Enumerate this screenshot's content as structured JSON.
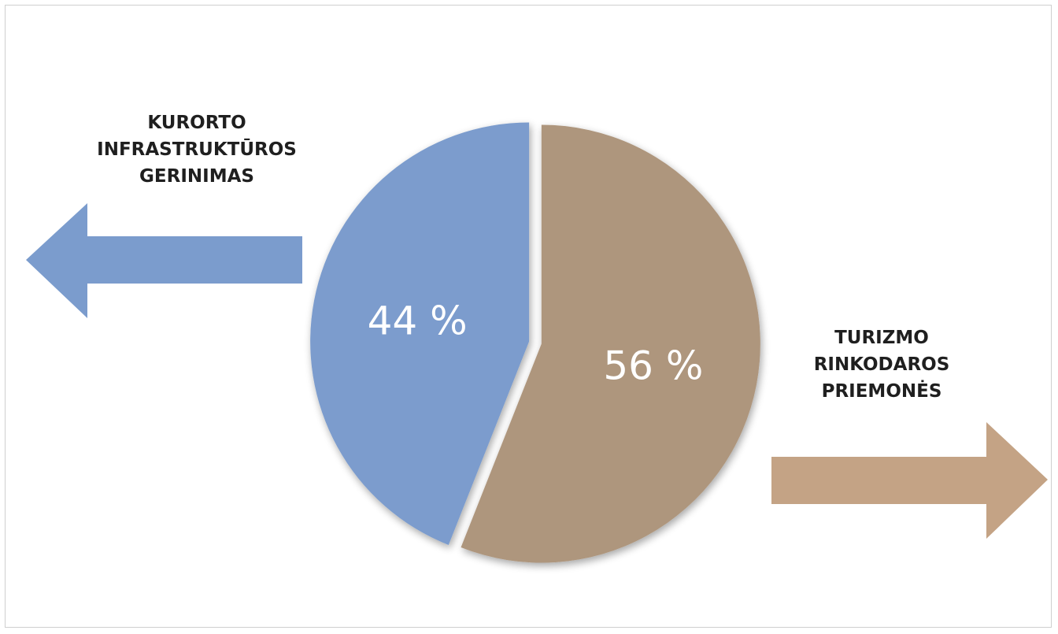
{
  "chart_data": {
    "type": "pie",
    "title": "",
    "slices": [
      {
        "label": "KURORTO\nINFRASTRUKTŪROS\nGERINIMAS",
        "value": 44,
        "value_label": "44 %",
        "color": "#7b9ccd"
      },
      {
        "label": "TURIZMO\nRINKODAROS\nPRIEMONĖS",
        "value": 56,
        "value_label": "56 %",
        "color": "#ae967d"
      }
    ],
    "start": "12 o'clock, first slice counter-clockwise",
    "exploded": true,
    "arrow_colors": {
      "left": "#7b9ccd",
      "right": "#c4a385"
    }
  }
}
